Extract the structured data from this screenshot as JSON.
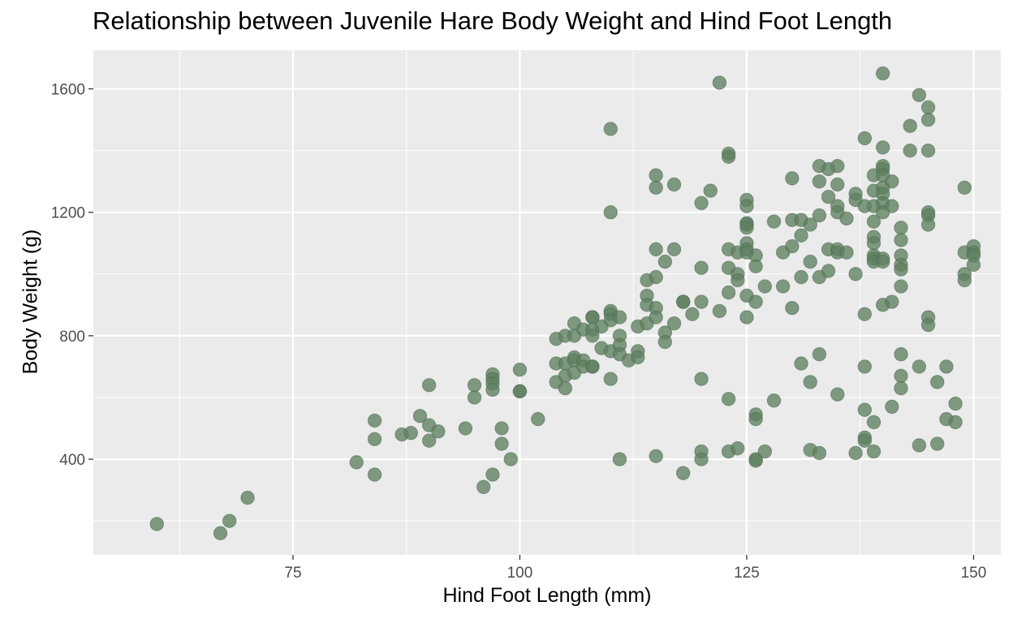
{
  "chart_data": {
    "type": "scatter",
    "title": "Relationship between Juvenile Hare Body Weight and Hind Foot Length",
    "xlabel": "Hind Foot Length (mm)",
    "ylabel": "Body Weight (g)",
    "xlim": [
      53,
      153
    ],
    "ylim": [
      90,
      1725
    ],
    "x_ticks": [
      75,
      100,
      125,
      150
    ],
    "y_ticks": [
      400,
      800,
      1200,
      1600
    ],
    "grid": true,
    "legend": "none",
    "colors": {
      "point": "#5f8060",
      "panel": "#ebebeb",
      "grid": "#ffffff"
    },
    "points": [
      [
        60,
        190
      ],
      [
        67,
        160
      ],
      [
        68,
        200
      ],
      [
        70,
        275
      ],
      [
        82,
        390
      ],
      [
        84,
        525
      ],
      [
        84,
        465
      ],
      [
        84,
        350
      ],
      [
        87,
        480
      ],
      [
        88,
        485
      ],
      [
        89,
        540
      ],
      [
        90,
        640
      ],
      [
        90,
        510
      ],
      [
        90,
        460
      ],
      [
        91,
        490
      ],
      [
        94,
        500
      ],
      [
        95,
        640
      ],
      [
        95,
        600
      ],
      [
        96,
        310
      ],
      [
        97,
        675
      ],
      [
        97,
        660
      ],
      [
        97,
        645
      ],
      [
        97,
        625
      ],
      [
        97,
        350
      ],
      [
        98,
        500
      ],
      [
        98,
        450
      ],
      [
        99,
        400
      ],
      [
        100,
        690
      ],
      [
        100,
        620
      ],
      [
        100,
        620
      ],
      [
        102,
        530
      ],
      [
        104,
        790
      ],
      [
        104,
        710
      ],
      [
        104,
        650
      ],
      [
        105,
        800
      ],
      [
        105,
        710
      ],
      [
        105,
        670
      ],
      [
        105,
        630
      ],
      [
        106,
        840
      ],
      [
        106,
        800
      ],
      [
        106,
        730
      ],
      [
        106,
        720
      ],
      [
        106,
        680
      ],
      [
        107,
        820
      ],
      [
        107,
        720
      ],
      [
        107,
        700
      ],
      [
        108,
        860
      ],
      [
        108,
        860
      ],
      [
        108,
        820
      ],
      [
        108,
        800
      ],
      [
        108,
        700
      ],
      [
        108,
        700
      ],
      [
        109,
        830
      ],
      [
        109,
        760
      ],
      [
        110,
        1470
      ],
      [
        110,
        1200
      ],
      [
        110,
        880
      ],
      [
        110,
        870
      ],
      [
        110,
        850
      ],
      [
        110,
        750
      ],
      [
        110,
        660
      ],
      [
        111,
        860
      ],
      [
        111,
        800
      ],
      [
        111,
        770
      ],
      [
        111,
        740
      ],
      [
        111,
        400
      ],
      [
        112,
        720
      ],
      [
        113,
        830
      ],
      [
        113,
        750
      ],
      [
        113,
        730
      ],
      [
        114,
        980
      ],
      [
        114,
        930
      ],
      [
        114,
        900
      ],
      [
        114,
        840
      ],
      [
        115,
        1320
      ],
      [
        115,
        1280
      ],
      [
        115,
        1080
      ],
      [
        115,
        990
      ],
      [
        115,
        890
      ],
      [
        115,
        860
      ],
      [
        115,
        410
      ],
      [
        116,
        1040
      ],
      [
        116,
        810
      ],
      [
        116,
        780
      ],
      [
        117,
        1290
      ],
      [
        117,
        1080
      ],
      [
        117,
        840
      ],
      [
        118,
        910
      ],
      [
        118,
        910
      ],
      [
        118,
        355
      ],
      [
        119,
        870
      ],
      [
        120,
        1230
      ],
      [
        120,
        1020
      ],
      [
        120,
        910
      ],
      [
        120,
        660
      ],
      [
        120,
        425
      ],
      [
        120,
        400
      ],
      [
        121,
        1270
      ],
      [
        122,
        1620
      ],
      [
        122,
        880
      ],
      [
        123,
        1390
      ],
      [
        123,
        1380
      ],
      [
        123,
        1080
      ],
      [
        123,
        1020
      ],
      [
        123,
        940
      ],
      [
        123,
        595
      ],
      [
        123,
        425
      ],
      [
        124,
        1070
      ],
      [
        124,
        1000
      ],
      [
        124,
        980
      ],
      [
        124,
        435
      ],
      [
        125,
        1240
      ],
      [
        125,
        1220
      ],
      [
        125,
        1165
      ],
      [
        125,
        1160
      ],
      [
        125,
        1150
      ],
      [
        125,
        1100
      ],
      [
        125,
        1080
      ],
      [
        125,
        1070
      ],
      [
        125,
        930
      ],
      [
        125,
        860
      ],
      [
        126,
        1060
      ],
      [
        126,
        1025
      ],
      [
        126,
        910
      ],
      [
        126,
        545
      ],
      [
        126,
        530
      ],
      [
        126,
        400
      ],
      [
        126,
        395
      ],
      [
        127,
        960
      ],
      [
        127,
        425
      ],
      [
        128,
        1170
      ],
      [
        128,
        590
      ],
      [
        129,
        1070
      ],
      [
        129,
        960
      ],
      [
        130,
        1310
      ],
      [
        130,
        1175
      ],
      [
        130,
        1090
      ],
      [
        130,
        890
      ],
      [
        131,
        1175
      ],
      [
        131,
        1125
      ],
      [
        131,
        990
      ],
      [
        131,
        710
      ],
      [
        132,
        1160
      ],
      [
        132,
        1040
      ],
      [
        132,
        650
      ],
      [
        132,
        430
      ],
      [
        133,
        1350
      ],
      [
        133,
        1300
      ],
      [
        133,
        1190
      ],
      [
        133,
        990
      ],
      [
        133,
        740
      ],
      [
        133,
        420
      ],
      [
        134,
        1340
      ],
      [
        134,
        1250
      ],
      [
        134,
        1080
      ],
      [
        134,
        1010
      ],
      [
        135,
        1350
      ],
      [
        135,
        1290
      ],
      [
        135,
        1220
      ],
      [
        135,
        1200
      ],
      [
        135,
        1080
      ],
      [
        135,
        1070
      ],
      [
        135,
        610
      ],
      [
        136,
        1180
      ],
      [
        136,
        1070
      ],
      [
        137,
        1260
      ],
      [
        137,
        1240
      ],
      [
        137,
        1000
      ],
      [
        137,
        420
      ],
      [
        138,
        1440
      ],
      [
        138,
        1220
      ],
      [
        138,
        870
      ],
      [
        138,
        700
      ],
      [
        138,
        560
      ],
      [
        138,
        470
      ],
      [
        138,
        460
      ],
      [
        139,
        1320
      ],
      [
        139,
        1270
      ],
      [
        139,
        1220
      ],
      [
        139,
        1170
      ],
      [
        139,
        1120
      ],
      [
        139,
        1100
      ],
      [
        139,
        1060
      ],
      [
        139,
        1050
      ],
      [
        139,
        1040
      ],
      [
        139,
        520
      ],
      [
        139,
        425
      ],
      [
        140,
        1650
      ],
      [
        140,
        1410
      ],
      [
        140,
        1350
      ],
      [
        140,
        1340
      ],
      [
        140,
        1320
      ],
      [
        140,
        1280
      ],
      [
        140,
        1260
      ],
      [
        140,
        1230
      ],
      [
        140,
        1200
      ],
      [
        140,
        1050
      ],
      [
        140,
        1040
      ],
      [
        140,
        900
      ],
      [
        141,
        1300
      ],
      [
        141,
        1220
      ],
      [
        141,
        910
      ],
      [
        141,
        570
      ],
      [
        142,
        1150
      ],
      [
        142,
        1110
      ],
      [
        142,
        1060
      ],
      [
        142,
        1030
      ],
      [
        142,
        1015
      ],
      [
        142,
        960
      ],
      [
        142,
        740
      ],
      [
        142,
        670
      ],
      [
        142,
        630
      ],
      [
        143,
        1480
      ],
      [
        143,
        1400
      ],
      [
        144,
        1580
      ],
      [
        144,
        700
      ],
      [
        144,
        445
      ],
      [
        145,
        1540
      ],
      [
        145,
        1500
      ],
      [
        145,
        1400
      ],
      [
        145,
        1200
      ],
      [
        145,
        1190
      ],
      [
        145,
        1160
      ],
      [
        145,
        860
      ],
      [
        145,
        835
      ],
      [
        146,
        650
      ],
      [
        146,
        450
      ],
      [
        147,
        700
      ],
      [
        147,
        530
      ],
      [
        148,
        580
      ],
      [
        148,
        520
      ],
      [
        149,
        1280
      ],
      [
        149,
        1070
      ],
      [
        149,
        1000
      ],
      [
        149,
        980
      ],
      [
        150,
        1090
      ],
      [
        150,
        1070
      ],
      [
        150,
        1060
      ],
      [
        150,
        1030
      ]
    ]
  }
}
